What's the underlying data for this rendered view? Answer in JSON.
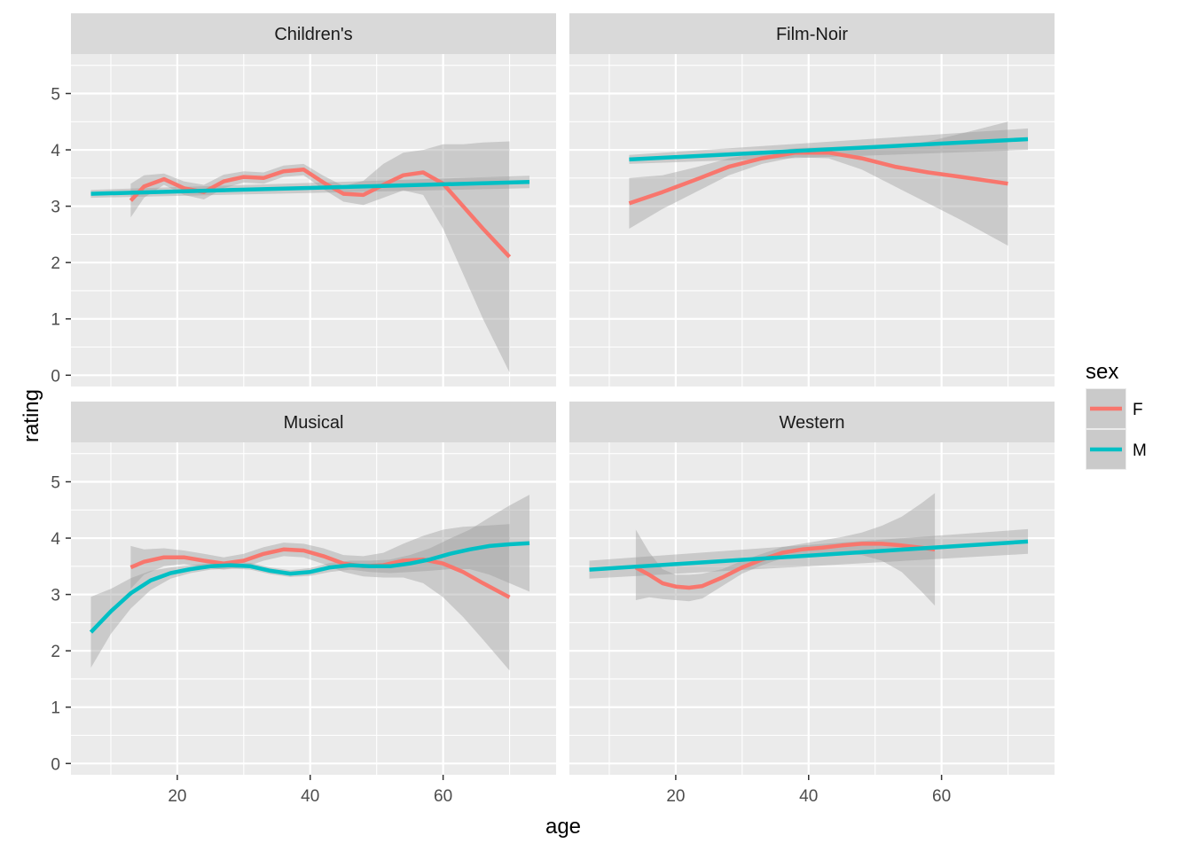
{
  "chart_data": {
    "type": "line",
    "xlabel": "age",
    "ylabel": "rating",
    "xlim": [
      4,
      77
    ],
    "ylim": [
      -0.2,
      5.7
    ],
    "x_ticks": [
      20,
      40,
      60
    ],
    "y_ticks": [
      0,
      1,
      2,
      3,
      4,
      5
    ],
    "legend": {
      "title": "sex",
      "position": "right",
      "entries": [
        {
          "label": "F",
          "color": "#F8766D"
        },
        {
          "label": "M",
          "color": "#00BFC4"
        }
      ]
    },
    "panel_background": "#EBEBEB",
    "band_color": "#999999",
    "strip_background": "#D9D9D9",
    "grid": true,
    "panels": [
      {
        "title": "Children's",
        "series": [
          {
            "name": "F",
            "color": "#F8766D",
            "x": [
              13,
              15,
              18,
              21,
              24,
              27,
              30,
              33,
              36,
              39,
              42,
              45,
              48,
              51,
              54,
              57,
              60,
              63,
              66,
              70
            ],
            "y": [
              3.1,
              3.35,
              3.48,
              3.32,
              3.25,
              3.44,
              3.52,
              3.5,
              3.62,
              3.65,
              3.42,
              3.22,
              3.2,
              3.38,
              3.55,
              3.6,
              3.4,
              3.0,
              2.6,
              2.1
            ],
            "lower": [
              2.8,
              3.15,
              3.38,
              3.2,
              3.12,
              3.32,
              3.42,
              3.4,
              3.52,
              3.55,
              3.3,
              3.08,
              3.02,
              3.15,
              3.28,
              3.2,
              2.6,
              1.8,
              1.0,
              0.05
            ],
            "upper": [
              3.4,
              3.55,
              3.58,
              3.44,
              3.38,
              3.56,
              3.62,
              3.6,
              3.72,
              3.75,
              3.54,
              3.36,
              3.45,
              3.75,
              3.95,
              4.0,
              4.1,
              4.1,
              4.13,
              4.15
            ]
          },
          {
            "name": "M",
            "color": "#00BFC4",
            "x": [
              7,
              73
            ],
            "y": [
              3.22,
              3.43
            ],
            "lower": [
              3.15,
              3.32
            ],
            "upper": [
              3.29,
              3.54
            ]
          }
        ]
      },
      {
        "title": "Film-Noir",
        "series": [
          {
            "name": "F",
            "color": "#F8766D",
            "x": [
              13,
              18,
              23,
              28,
              33,
              38,
              43,
              48,
              53,
              58,
              63,
              70
            ],
            "y": [
              3.05,
              3.25,
              3.47,
              3.7,
              3.85,
              3.95,
              3.95,
              3.85,
              3.7,
              3.6,
              3.52,
              3.4
            ],
            "lower": [
              2.6,
              2.95,
              3.25,
              3.55,
              3.75,
              3.87,
              3.85,
              3.65,
              3.35,
              3.05,
              2.75,
              2.3
            ],
            "upper": [
              3.5,
              3.55,
              3.69,
              3.85,
              3.95,
              4.03,
              4.05,
              4.05,
              4.05,
              4.15,
              4.29,
              4.5
            ]
          },
          {
            "name": "M",
            "color": "#00BFC4",
            "x": [
              13,
              73
            ],
            "y": [
              3.83,
              4.19
            ],
            "lower": [
              3.75,
              4.0
            ],
            "upper": [
              3.91,
              4.38
            ]
          }
        ]
      },
      {
        "title": "Musical",
        "series": [
          {
            "name": "F",
            "color": "#F8766D",
            "x": [
              13,
              15,
              18,
              21,
              24,
              27,
              30,
              33,
              36,
              39,
              42,
              45,
              48,
              51,
              54,
              57,
              60,
              63,
              66,
              70
            ],
            "y": [
              3.48,
              3.58,
              3.66,
              3.66,
              3.6,
              3.55,
              3.6,
              3.72,
              3.8,
              3.78,
              3.68,
              3.55,
              3.5,
              3.52,
              3.6,
              3.62,
              3.55,
              3.4,
              3.2,
              2.95
            ],
            "lower": [
              3.1,
              3.35,
              3.5,
              3.54,
              3.48,
              3.44,
              3.48,
              3.6,
              3.68,
              3.66,
              3.54,
              3.4,
              3.32,
              3.3,
              3.3,
              3.2,
              2.95,
              2.6,
              2.2,
              1.65
            ],
            "upper": [
              3.86,
              3.8,
              3.82,
              3.78,
              3.72,
              3.66,
              3.72,
              3.84,
              3.92,
              3.9,
              3.82,
              3.7,
              3.68,
              3.74,
              3.9,
              4.04,
              4.15,
              4.2,
              4.22,
              4.25
            ]
          },
          {
            "name": "M",
            "color": "#00BFC4",
            "x": [
              7,
              10,
              13,
              16,
              19,
              22,
              25,
              28,
              31,
              34,
              37,
              40,
              43,
              46,
              49,
              52,
              55,
              58,
              61,
              64,
              67,
              70,
              73
            ],
            "y": [
              2.33,
              2.7,
              3.02,
              3.25,
              3.38,
              3.45,
              3.5,
              3.52,
              3.5,
              3.42,
              3.37,
              3.4,
              3.48,
              3.52,
              3.5,
              3.5,
              3.55,
              3.62,
              3.72,
              3.8,
              3.86,
              3.89,
              3.91
            ],
            "lower": [
              1.7,
              2.3,
              2.75,
              3.08,
              3.28,
              3.38,
              3.44,
              3.46,
              3.44,
              3.36,
              3.31,
              3.33,
              3.4,
              3.44,
              3.4,
              3.38,
              3.4,
              3.42,
              3.45,
              3.45,
              3.35,
              3.2,
              3.05
            ],
            "upper": [
              2.96,
              3.1,
              3.29,
              3.42,
              3.48,
              3.52,
              3.56,
              3.58,
              3.56,
              3.48,
              3.43,
              3.47,
              3.56,
              3.6,
              3.6,
              3.62,
              3.7,
              3.82,
              3.99,
              4.15,
              4.37,
              4.58,
              4.77
            ]
          }
        ]
      },
      {
        "title": "Western",
        "series": [
          {
            "name": "F",
            "color": "#F8766D",
            "x": [
              14,
              16,
              18,
              20,
              22,
              24,
              27,
              30,
              33,
              36,
              39,
              42,
              45,
              48,
              51,
              54,
              57,
              59
            ],
            "y": [
              3.48,
              3.35,
              3.2,
              3.14,
              3.12,
              3.15,
              3.3,
              3.48,
              3.62,
              3.74,
              3.8,
              3.83,
              3.87,
              3.9,
              3.9,
              3.87,
              3.83,
              3.8
            ],
            "lower": [
              2.9,
              2.95,
              2.92,
              2.9,
              2.88,
              2.93,
              3.15,
              3.37,
              3.52,
              3.64,
              3.7,
              3.7,
              3.72,
              3.7,
              3.6,
              3.4,
              3.05,
              2.8
            ],
            "upper": [
              4.15,
              3.75,
              3.45,
              3.35,
              3.35,
              3.37,
              3.45,
              3.6,
              3.72,
              3.84,
              3.9,
              3.96,
              4.02,
              4.1,
              4.22,
              4.38,
              4.62,
              4.8
            ]
          },
          {
            "name": "M",
            "color": "#00BFC4",
            "x": [
              7,
              73
            ],
            "y": [
              3.44,
              3.94
            ],
            "lower": [
              3.28,
              3.72
            ],
            "upper": [
              3.6,
              4.16
            ]
          }
        ]
      }
    ]
  }
}
